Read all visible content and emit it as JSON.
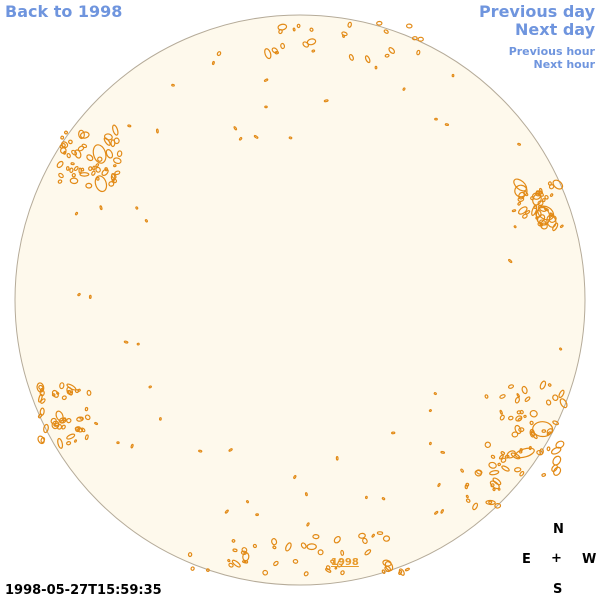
{
  "nav": {
    "back": "Back to 1998",
    "previous_day": "Previous day",
    "next_day": "Next day",
    "previous_hour": "Previous hour",
    "next_hour": "Next hour"
  },
  "disk": {
    "fill_color": "#fef9ec",
    "border_color": "#b5ab99",
    "feature_color": "#e28a16",
    "year_label": "1998"
  },
  "timestamp": "1998-05-27T15:59:35",
  "compass": {
    "north": "N",
    "east": "E",
    "west": "W",
    "south": "S",
    "center": "+"
  }
}
